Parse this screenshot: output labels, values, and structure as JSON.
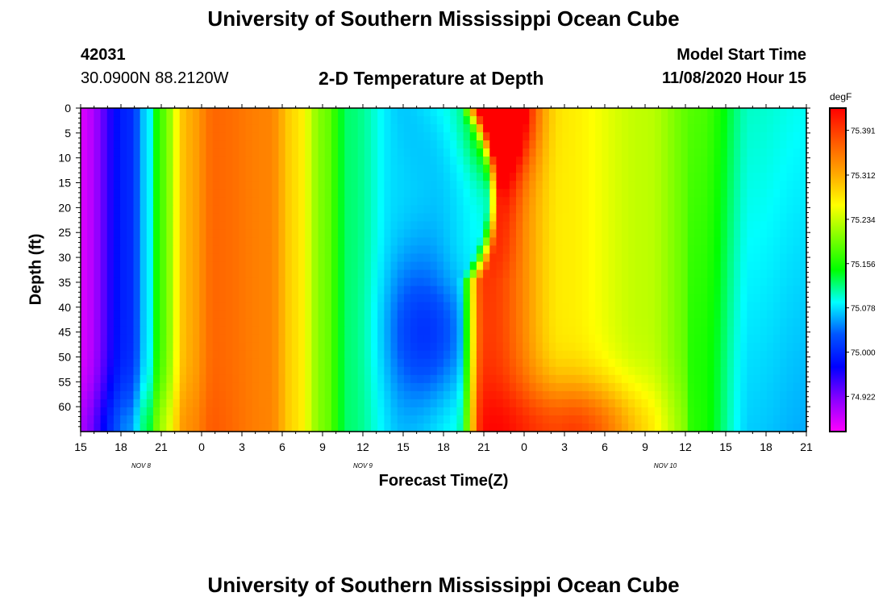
{
  "header": {
    "title": "University of Southern Mississippi Ocean Cube",
    "station_id": "42031",
    "station_coords": "30.0900N 88.2120W",
    "subtitle": "2-D Temperature at Depth",
    "model_start_label": "Model Start Time",
    "model_start_value": "11/08/2020 Hour 15"
  },
  "footer": {
    "title": "University of Southern Mississippi Ocean Cube"
  },
  "chart_data": {
    "type": "heatmap",
    "title": "2-D Temperature at Depth",
    "xlabel": "Forecast Time(Z)",
    "ylabel": "Depth (ft)",
    "units": "degF",
    "x_tick_labels": [
      "15",
      "18",
      "21",
      "0",
      "3",
      "6",
      "9",
      "12",
      "15",
      "18",
      "21",
      "0",
      "3",
      "6",
      "9",
      "12",
      "15",
      "18",
      "21"
    ],
    "x_hours": [
      0,
      3,
      6,
      9,
      12,
      15,
      18,
      21,
      24,
      27,
      30,
      33,
      36,
      39,
      42,
      45,
      48,
      51,
      54
    ],
    "xlim": [
      0,
      54
    ],
    "day_labels": [
      {
        "label": "NOV  8",
        "hour": 4.5
      },
      {
        "label": "NOV  9",
        "hour": 21
      },
      {
        "label": "NOV  10",
        "hour": 43.5
      }
    ],
    "y_ticks": [
      0,
      5,
      10,
      15,
      20,
      25,
      30,
      35,
      40,
      45,
      50,
      55,
      60
    ],
    "ylim": [
      0,
      65
    ],
    "y_inverted": true,
    "colorbar": {
      "labels": [
        "75.391",
        "75.312",
        "75.234",
        "75.156",
        "75.078",
        "75.000",
        "74.922"
      ],
      "min": 74.86,
      "max": 75.43,
      "colors": [
        "#ff00ff",
        "#8a00ff",
        "#0000ff",
        "#0055ff",
        "#00ffff",
        "#00ff00",
        "#7fff00",
        "#ffff00",
        "#ffa500",
        "#ff5500",
        "#ff0000"
      ]
    },
    "temperature_features": [
      {
        "hour": 0,
        "value": 74.88
      },
      {
        "hour": 3.6,
        "value": 75.0
      },
      {
        "hour": 5,
        "value": 75.08
      },
      {
        "hour": 6,
        "value": 75.18
      },
      {
        "hour": 8,
        "value": 75.31
      },
      {
        "hour": 10,
        "value": 75.36
      },
      {
        "hour": 14,
        "value": 75.34
      },
      {
        "hour": 16,
        "value": 75.28
      },
      {
        "hour": 18,
        "value": 75.2
      },
      {
        "hour": 20,
        "value": 75.12
      },
      {
        "hour": 24,
        "value": 75.07
      },
      {
        "hour": 28,
        "value": 75.09
      },
      {
        "hour": 30,
        "value": 75.4
      },
      {
        "hour": 36,
        "value": 75.27
      },
      {
        "hour": 42,
        "value": 75.23
      },
      {
        "hour": 46,
        "value": 75.18
      },
      {
        "hour": 50,
        "value": 75.1
      },
      {
        "hour": 54,
        "value": 75.09
      }
    ]
  }
}
